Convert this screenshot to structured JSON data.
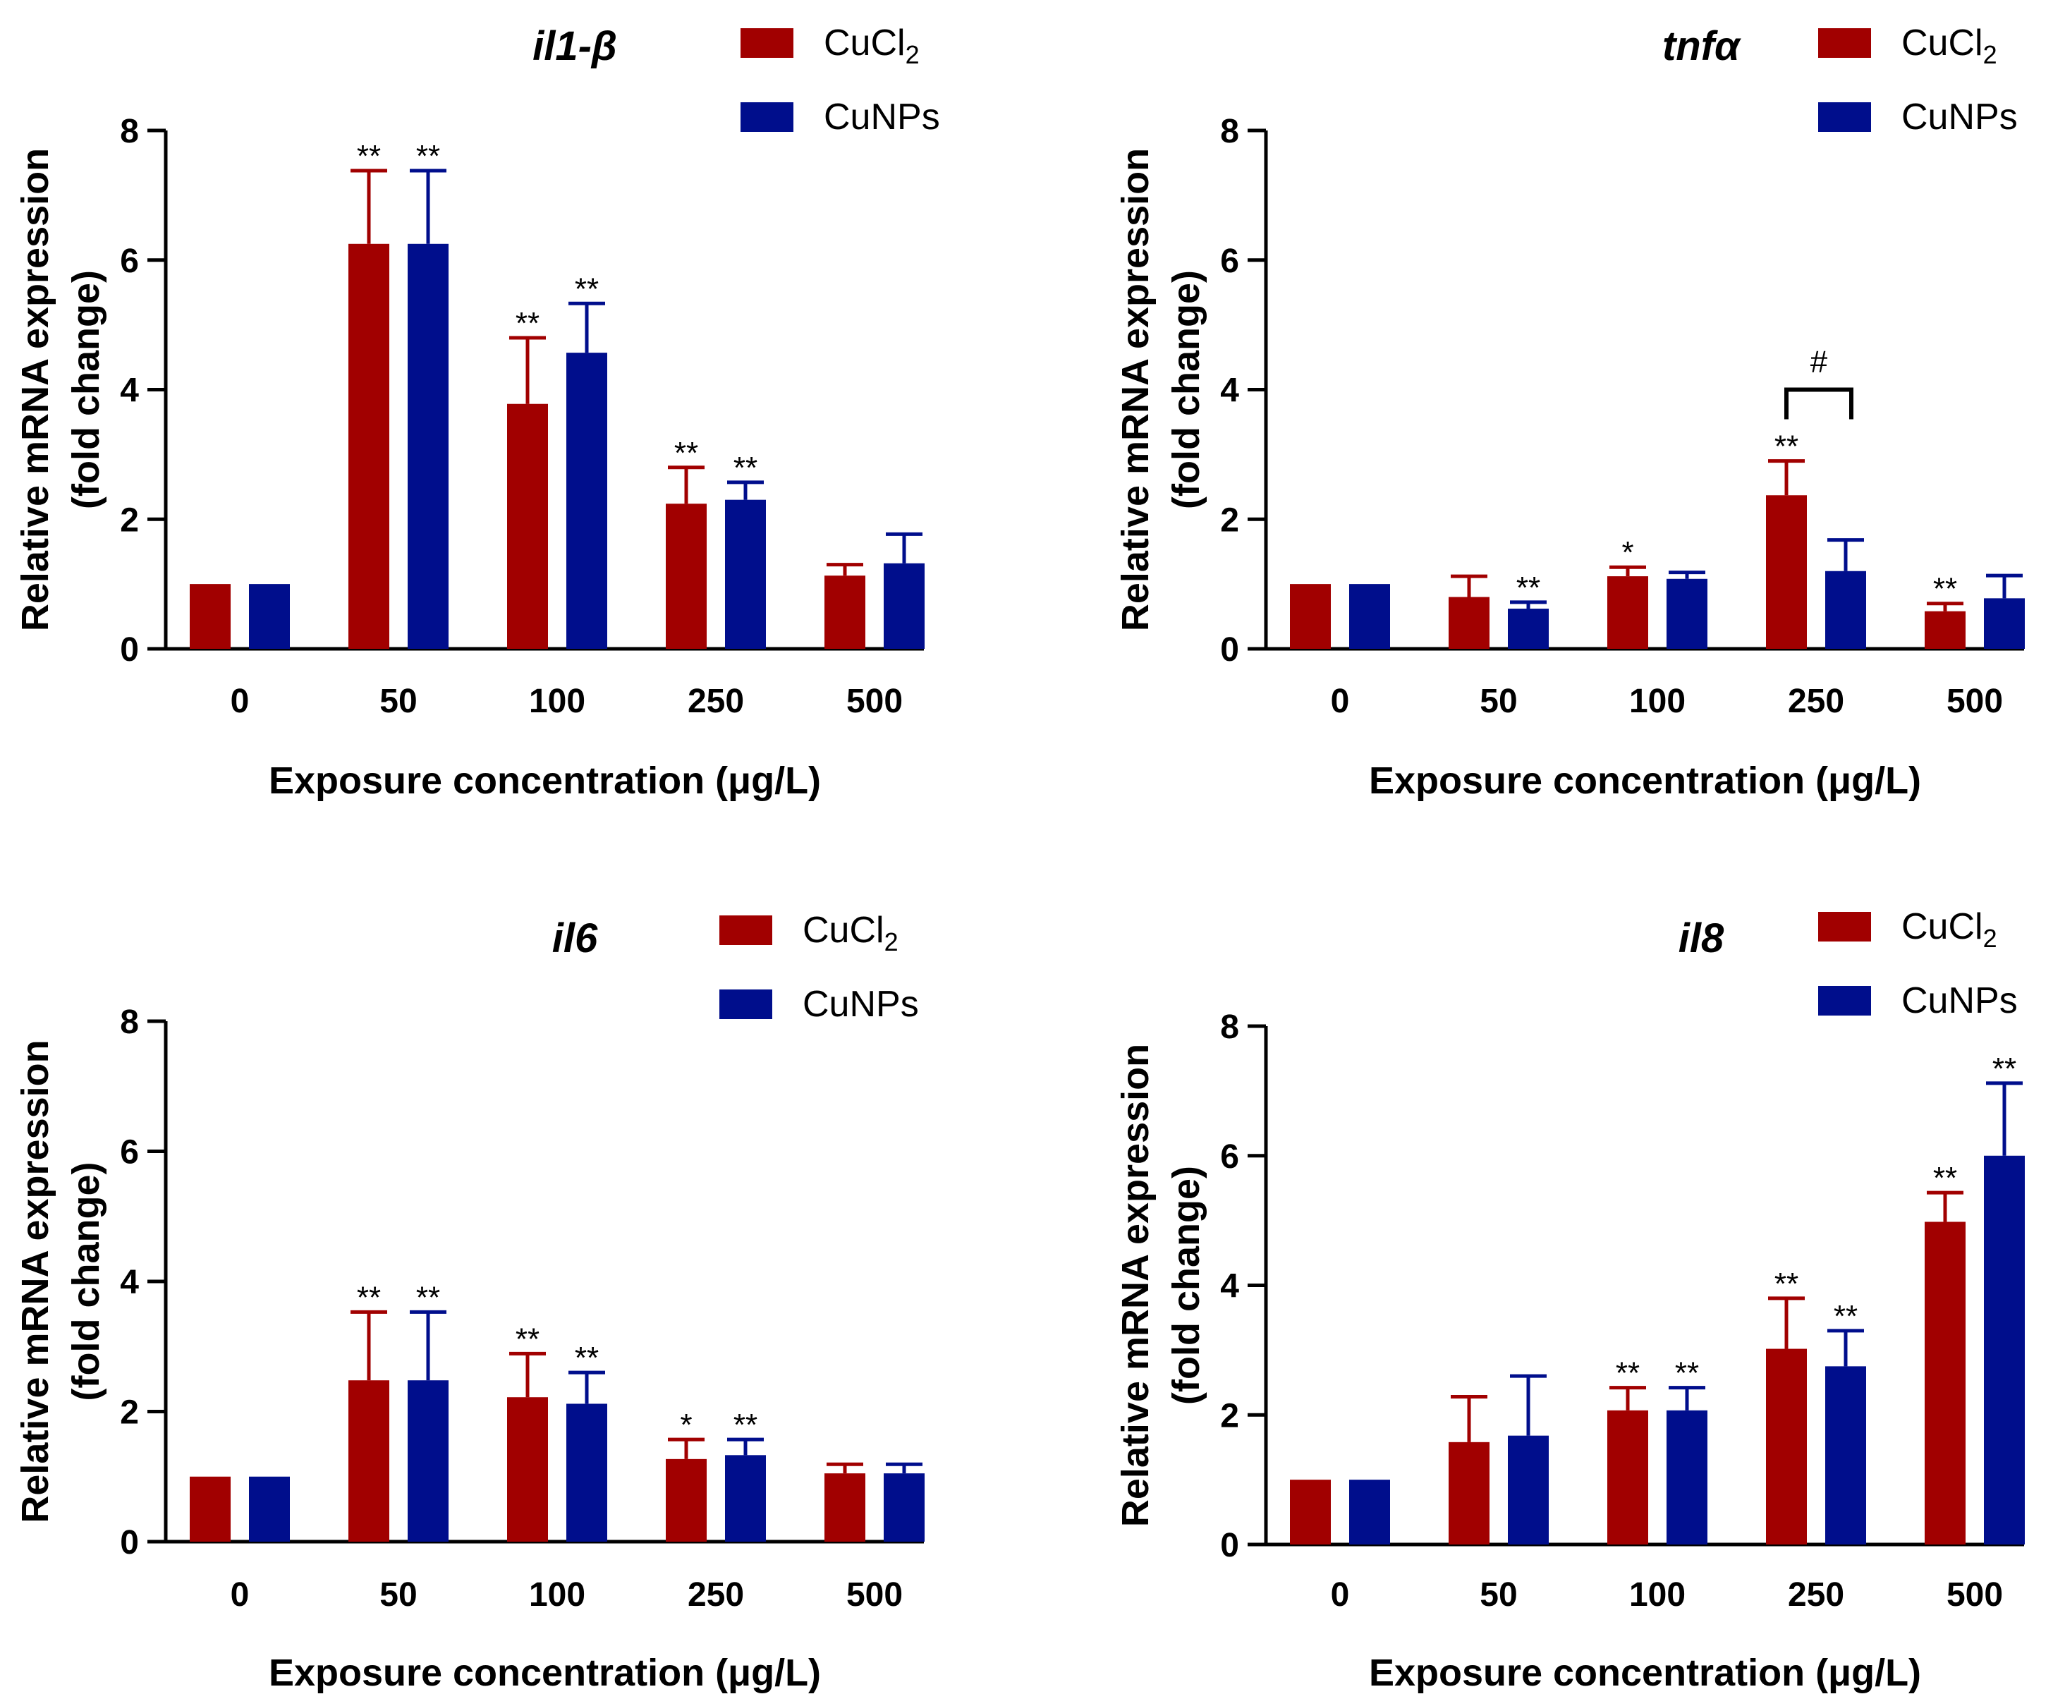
{
  "colors": {
    "cucl2": "#A10000",
    "cunps": "#000E8C",
    "axis": "#000000"
  },
  "legend": {
    "cucl2_base": "CuCl",
    "cucl2_sub": "2",
    "cunps": "CuNPs"
  },
  "chart_data": [
    {
      "type": "bar",
      "title": "il1-β",
      "xlabel": "Exposure concentration (μg/L)",
      "ylabel": [
        "Relative mRNA expression",
        "(fold change)"
      ],
      "categories": [
        "0",
        "50",
        "100",
        "250",
        "500"
      ],
      "ylim": [
        0,
        8
      ],
      "yticks": [
        "0",
        "2",
        "4",
        "6",
        "8"
      ],
      "series": [
        {
          "name": "CuCl2",
          "values": [
            1.0,
            6.25,
            3.78,
            2.24,
            1.13
          ],
          "errors": [
            0,
            1.13,
            1.02,
            0.56,
            0.17
          ],
          "sig": [
            "",
            "**",
            "**",
            "**",
            ""
          ]
        },
        {
          "name": "CuNPs",
          "values": [
            1.0,
            6.25,
            4.57,
            2.3,
            1.32
          ],
          "errors": [
            0,
            1.13,
            0.76,
            0.27,
            0.45
          ],
          "sig": [
            "",
            "**",
            "**",
            "**",
            ""
          ]
        }
      ]
    },
    {
      "type": "bar",
      "title": "tnfα",
      "xlabel": "Exposure concentration (μg/L)",
      "ylabel": [
        "Relative mRNA expression",
        "(fold change)"
      ],
      "categories": [
        "0",
        "50",
        "100",
        "250",
        "500"
      ],
      "ylim": [
        0,
        8
      ],
      "yticks": [
        "0",
        "2",
        "4",
        "6",
        "8"
      ],
      "series": [
        {
          "name": "CuCl2",
          "values": [
            1.0,
            0.8,
            1.12,
            2.37,
            0.58
          ],
          "errors": [
            0,
            0.32,
            0.14,
            0.53,
            0.12
          ],
          "sig": [
            "",
            "",
            "*",
            "**",
            "**"
          ]
        },
        {
          "name": "CuNPs",
          "values": [
            1.0,
            0.62,
            1.08,
            1.2,
            0.78
          ],
          "errors": [
            0,
            0.1,
            0.1,
            0.48,
            0.35
          ],
          "sig": [
            "",
            "**",
            "",
            "",
            ""
          ]
        }
      ],
      "bracket": {
        "category_index": 3,
        "y": 4.0,
        "label": "#"
      }
    },
    {
      "type": "bar",
      "title": "il6",
      "xlabel": "Exposure concentration (μg/L)",
      "ylabel": [
        "Relative mRNA expression",
        "(fold change)"
      ],
      "categories": [
        "0",
        "50",
        "100",
        "250",
        "500"
      ],
      "ylim": [
        0,
        8
      ],
      "yticks": [
        "0",
        "2",
        "4",
        "6",
        "8"
      ],
      "series": [
        {
          "name": "CuCl2",
          "values": [
            1.0,
            2.48,
            2.22,
            1.27,
            1.05
          ],
          "errors": [
            0,
            1.05,
            0.67,
            0.3,
            0.14
          ],
          "sig": [
            "",
            "**",
            "**",
            "*",
            ""
          ]
        },
        {
          "name": "CuNPs",
          "values": [
            1.0,
            2.48,
            2.12,
            1.33,
            1.05
          ],
          "errors": [
            0,
            1.05,
            0.48,
            0.24,
            0.14
          ],
          "sig": [
            "",
            "**",
            "**",
            "**",
            ""
          ]
        }
      ]
    },
    {
      "type": "bar",
      "title": "il8",
      "xlabel": "Exposure concentration (μg/L)",
      "ylabel": [
        "Relative mRNA expression",
        "(fold change)"
      ],
      "categories": [
        "0",
        "50",
        "100",
        "250",
        "500"
      ],
      "ylim": [
        0,
        8
      ],
      "yticks": [
        "0",
        "2",
        "4",
        "6",
        "8"
      ],
      "series": [
        {
          "name": "CuCl2",
          "values": [
            1.0,
            1.58,
            2.07,
            3.02,
            4.98
          ],
          "errors": [
            0,
            0.7,
            0.35,
            0.78,
            0.45
          ],
          "sig": [
            "",
            "",
            "**",
            "**",
            "**"
          ]
        },
        {
          "name": "CuNPs",
          "values": [
            1.0,
            1.68,
            2.07,
            2.75,
            6.0
          ],
          "errors": [
            0,
            0.92,
            0.35,
            0.55,
            1.12
          ],
          "sig": [
            "",
            "",
            "**",
            "**",
            "**"
          ]
        }
      ]
    }
  ]
}
